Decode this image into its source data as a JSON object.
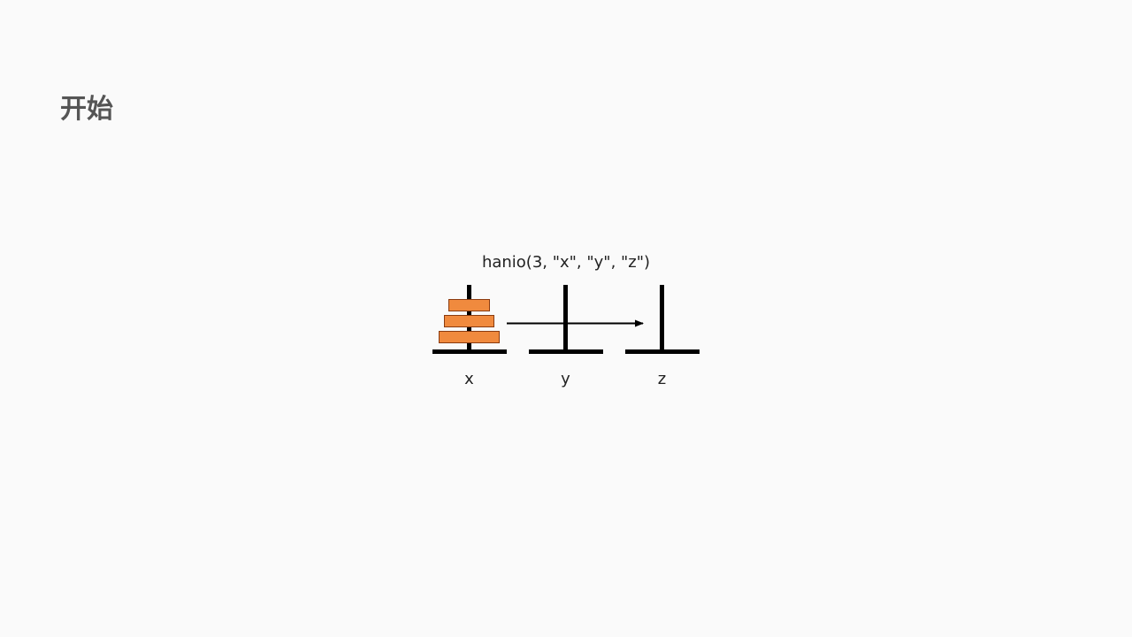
{
  "slide": {
    "title": "开始",
    "call": "hanio(3, \"x\", \"y\", \"z\")"
  },
  "pegs": [
    {
      "label": "x",
      "disks": 3
    },
    {
      "label": "y",
      "disks": 0
    },
    {
      "label": "z",
      "disks": 0
    }
  ],
  "colors": {
    "disk_fill": "#f08a3e",
    "disk_stroke": "#8a3b10",
    "peg": "#000000",
    "background": "#fafafa"
  },
  "move_arrow": {
    "from": "x",
    "to": "z",
    "via": "y"
  }
}
